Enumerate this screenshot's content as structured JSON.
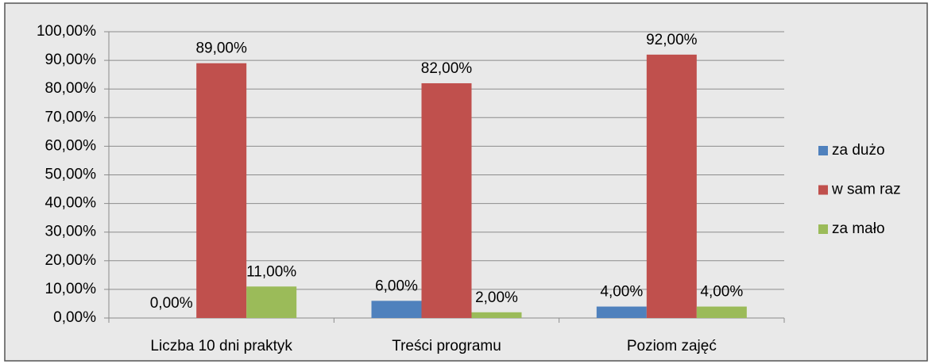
{
  "chart_data": {
    "type": "bar",
    "categories": [
      "Liczba 10 dni praktyk",
      "Treści programu",
      "Poziom zajęć"
    ],
    "series": [
      {
        "name": "za dużo",
        "color": "#4f81bd",
        "values": [
          0,
          6,
          4
        ],
        "value_labels": [
          "0,00%",
          "6,00%",
          "4,00%"
        ]
      },
      {
        "name": "w sam raz",
        "color": "#c0504d",
        "values": [
          89,
          82,
          92
        ],
        "value_labels": [
          "89,00%",
          "82,00%",
          "92,00%"
        ]
      },
      {
        "name": "za mało",
        "color": "#9bbb59",
        "values": [
          11,
          2,
          4
        ],
        "value_labels": [
          "11,00%",
          "2,00%",
          "4,00%"
        ]
      }
    ],
    "ylim": [
      0,
      100
    ],
    "yticks": [
      {
        "value": 0,
        "label": "0,00%"
      },
      {
        "value": 10,
        "label": "10,00%"
      },
      {
        "value": 20,
        "label": "20,00%"
      },
      {
        "value": 30,
        "label": "30,00%"
      },
      {
        "value": 40,
        "label": "40,00%"
      },
      {
        "value": 50,
        "label": "50,00%"
      },
      {
        "value": 60,
        "label": "60,00%"
      },
      {
        "value": 70,
        "label": "70,00%"
      },
      {
        "value": 80,
        "label": "80,00%"
      },
      {
        "value": 90,
        "label": "90,00%"
      },
      {
        "value": 100,
        "label": "100,00%"
      }
    ],
    "grid": true,
    "legend": "right"
  }
}
